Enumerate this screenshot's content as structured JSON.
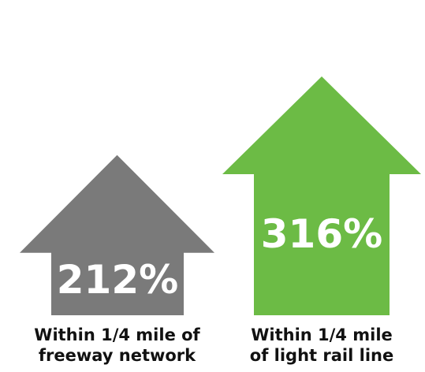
{
  "chart_data": {
    "type": "bar",
    "title": "",
    "xlabel": "",
    "ylabel": "",
    "categories": [
      [
        "Within 1/4 mile of",
        "freeway network"
      ],
      [
        "Within 1/4 mile",
        "of light rail line"
      ]
    ],
    "values": [
      212,
      316
    ],
    "value_labels": [
      "212%",
      "316%"
    ],
    "unit": "%",
    "colors": [
      "#7a7a7a",
      "#6cbb45"
    ],
    "ylim": [
      0,
      350
    ],
    "grid": false,
    "legend": "none"
  }
}
